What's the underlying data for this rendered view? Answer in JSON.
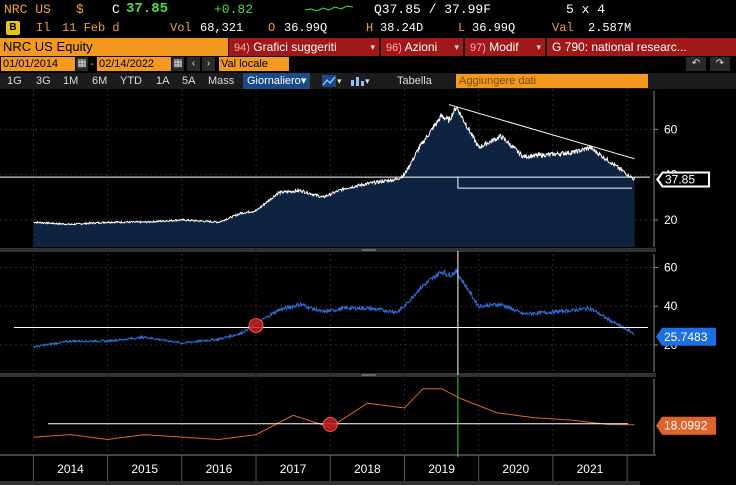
{
  "quote": {
    "ticker": "NRC US",
    "currency_symbol": "$",
    "c_label": "C",
    "last_price": "37.85",
    "change": "+0.82",
    "bid_ask": "Q37.85 / 37.99F",
    "size": "5 x 4",
    "date_prefix": "Il",
    "date": "11 Feb d",
    "vol_label": "Vol",
    "volume": "68,321",
    "open_label": "O",
    "open": "36.99Q",
    "high_label": "H",
    "high": "38.24D",
    "low_label": "L",
    "low": "36.99Q",
    "val_label": "Val",
    "value": "2.587M"
  },
  "header": {
    "title": "NRC US Equity",
    "buttons": [
      {
        "num": "94)",
        "label": "Grafici suggeriti"
      },
      {
        "num": "96)",
        "label": "Azioni"
      },
      {
        "num": "97)",
        "label": "Modif"
      },
      {
        "num": "",
        "label": "G 790: national researc..."
      }
    ]
  },
  "dates": {
    "start": "01/01/2014",
    "end": "02/14/2022",
    "currency_mode": "Val locale"
  },
  "periods": [
    "1G",
    "3G",
    "1M",
    "6M",
    "YTD",
    "1A",
    "5A",
    "Mass"
  ],
  "frequency": "Giornaliero",
  "table_label": "Tabella",
  "add_data_placeholder": "Aggiungere dati",
  "icons": {
    "undo": "undo-icon",
    "redo": "redo-icon",
    "calendar": "calendar-icon",
    "prev": "chevron-left-icon",
    "next": "chevron-right-icon",
    "line_chart": "line-chart-icon",
    "bar_chart": "bar-chart-icon"
  },
  "colors": {
    "amber": "#f39a1e",
    "red_button": "#a01818",
    "price_fill": "#0d2340",
    "panel2_line": "#2f6fd8",
    "panel3_line": "#e0642a",
    "marker": "#c02020",
    "current_marker_bg": "#1e6fe0",
    "label3_bg": "#e0642a"
  },
  "chart_data": [
    {
      "type": "area",
      "title": "",
      "x": [
        2014.0,
        2014.5,
        2015.0,
        2015.5,
        2016.0,
        2016.5,
        2016.8,
        2017.0,
        2017.3,
        2017.6,
        2017.9,
        2018.2,
        2018.5,
        2018.9,
        2019.0,
        2019.2,
        2019.5,
        2019.6,
        2019.7,
        2020.0,
        2020.3,
        2020.6,
        2021.0,
        2021.3,
        2021.5,
        2021.8,
        2022.1
      ],
      "values": [
        19,
        18,
        19,
        19,
        20,
        19,
        23,
        24,
        32,
        33,
        30,
        34,
        36,
        38,
        40,
        52,
        66,
        64,
        70,
        52,
        57,
        48,
        49,
        50,
        52,
        45,
        37.85
      ],
      "yticks": [
        20,
        40,
        60
      ],
      "ylim": [
        8,
        77
      ],
      "current_value": "37.85",
      "annotations": {
        "support_level": 38,
        "resistance_start": [
          2019.6,
          71
        ],
        "resistance_end": [
          2022.1,
          47
        ]
      }
    },
    {
      "type": "line",
      "title": "",
      "x": [
        2014.0,
        2014.5,
        2015.0,
        2015.5,
        2016.0,
        2016.5,
        2016.8,
        2017.0,
        2017.3,
        2017.6,
        2017.9,
        2018.2,
        2018.5,
        2018.9,
        2019.0,
        2019.2,
        2019.5,
        2019.6,
        2019.7,
        2020.0,
        2020.3,
        2020.6,
        2021.0,
        2021.3,
        2021.5,
        2021.8,
        2022.1
      ],
      "values": [
        19,
        22,
        22,
        24,
        21,
        23,
        26,
        31,
        38,
        41,
        37,
        39,
        39,
        37,
        40,
        49,
        58,
        56,
        58,
        40,
        41,
        36,
        37,
        38,
        39,
        32,
        25.7483
      ],
      "yticks": [
        20,
        40,
        60
      ],
      "ylim": [
        6,
        67
      ],
      "current_value": "25.7483",
      "annotations": {
        "reference_level": 29,
        "vertical_marker_x": 2019.72,
        "circle_marker": [
          2017.0,
          30
        ]
      }
    },
    {
      "type": "line",
      "title": "",
      "x": [
        2014.0,
        2014.5,
        2015.0,
        2015.5,
        2016.0,
        2016.5,
        2017.0,
        2017.5,
        2018.0,
        2018.5,
        2019.0,
        2019.25,
        2019.5,
        2019.75,
        2020.25,
        2020.75,
        2021.25,
        2021.75,
        2022.1
      ],
      "values": [
        13,
        14,
        12,
        14,
        13,
        12,
        14,
        22,
        17,
        27,
        25,
        33,
        33,
        29,
        23,
        21,
        20,
        18.2,
        18.0992
      ],
      "ylim": [
        6,
        37
      ],
      "current_value": "18.0992",
      "annotations": {
        "reference_level": 18.5,
        "vertical_marker_x": 2019.72,
        "circle_marker": [
          2018.0,
          18.2
        ]
      }
    }
  ],
  "x_axis": {
    "labels": [
      "2014",
      "2015",
      "2016",
      "2017",
      "2018",
      "2019",
      "2020",
      "2021"
    ]
  }
}
